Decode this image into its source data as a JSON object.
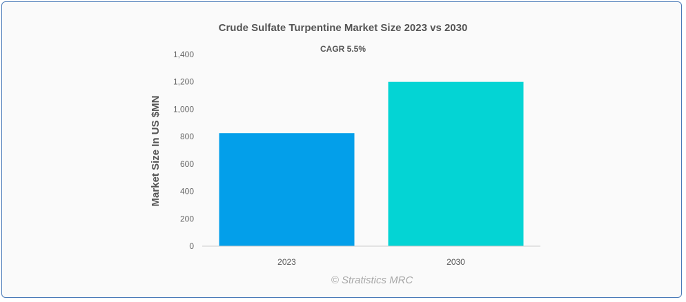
{
  "chart_data": {
    "type": "bar",
    "title": "Crude Sulfate Turpentine Market Size 2023 vs 2030",
    "subtitle": "CAGR 5.5%",
    "categories": [
      "2023",
      "2030"
    ],
    "values": [
      825,
      1200
    ],
    "colors": [
      "#039fea",
      "#04d4d4"
    ],
    "xlabel": "",
    "ylabel": "Market Size In US $MN",
    "ylim": [
      0,
      1400
    ],
    "yticks": [
      0,
      200,
      400,
      600,
      800,
      1000,
      1200,
      1400
    ],
    "ytick_labels": [
      "0",
      "200",
      "400",
      "600",
      "800",
      "1,000",
      "1,200",
      "1,400"
    ],
    "grid": false,
    "legend": "none"
  },
  "watermark": "© Stratistics MRC"
}
